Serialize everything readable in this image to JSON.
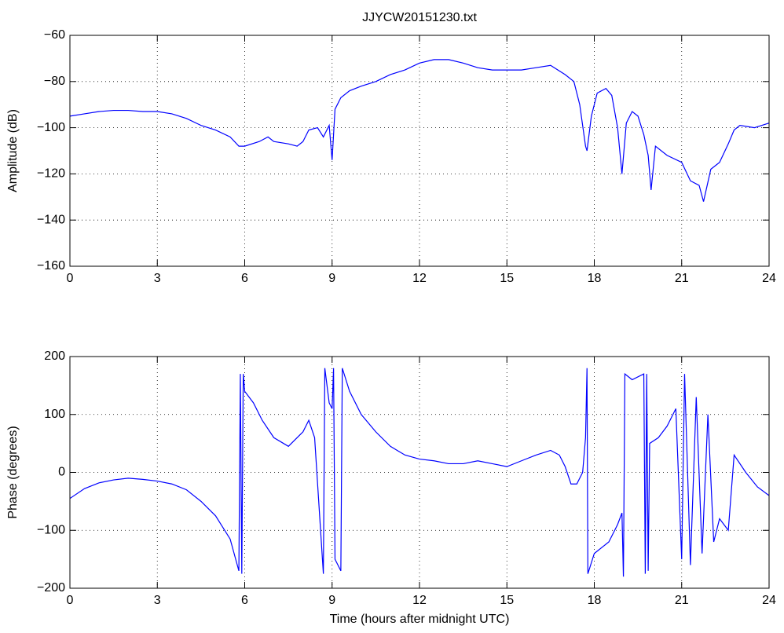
{
  "chart_data": [
    {
      "type": "line",
      "title": "JJYCW20151230.txt",
      "ylabel": "Amplitude (dB)",
      "color": "#0000ff",
      "grid": true,
      "xlim": [
        0,
        24
      ],
      "xticks": [
        0,
        3,
        6,
        9,
        12,
        15,
        18,
        21,
        24
      ],
      "ylim": [
        -160,
        -60
      ],
      "yticks": [
        {
          "value": -160,
          "label": "−160"
        },
        {
          "value": -140,
          "label": "−140"
        },
        {
          "value": -120,
          "label": "−120"
        },
        {
          "value": -100,
          "label": "−100"
        },
        {
          "value": -80,
          "label": "−80"
        },
        {
          "value": -60,
          "label": "−60"
        }
      ],
      "x": [
        0,
        0.5,
        1,
        1.5,
        2,
        2.5,
        3,
        3.5,
        4,
        4.5,
        5,
        5.5,
        5.8,
        6,
        6.5,
        6.8,
        7,
        7.5,
        7.8,
        8,
        8.2,
        8.5,
        8.7,
        8.9,
        9.0,
        9.1,
        9.3,
        9.6,
        10,
        10.5,
        11,
        11.5,
        12,
        12.5,
        13,
        13.5,
        14,
        14.5,
        15,
        15.5,
        16,
        16.5,
        17,
        17.3,
        17.5,
        17.7,
        17.75,
        17.9,
        18.1,
        18.4,
        18.6,
        18.8,
        18.95,
        19.1,
        19.3,
        19.5,
        19.7,
        19.85,
        19.95,
        20.1,
        20.5,
        21,
        21.3,
        21.6,
        21.75,
        22,
        22.3,
        22.6,
        22.8,
        23,
        23.5,
        24
      ],
      "values": [
        -95,
        -94,
        -93,
        -92.5,
        -92.5,
        -93,
        -93,
        -94,
        -96,
        -99,
        -101,
        -104,
        -108,
        -108,
        -106,
        -104,
        -106,
        -107,
        -108,
        -106,
        -101,
        -100,
        -104,
        -99,
        -114,
        -92,
        -87,
        -84,
        -82,
        -80,
        -77,
        -75,
        -72,
        -70.5,
        -70.5,
        -72,
        -74,
        -75,
        -75,
        -75,
        -74,
        -73,
        -77,
        -80,
        -90,
        -108,
        -110,
        -95,
        -85,
        -83,
        -86,
        -100,
        -120,
        -98,
        -93,
        -95,
        -103,
        -112,
        -127,
        -108,
        -112,
        -115,
        -123,
        -125,
        -132,
        -118,
        -115,
        -107,
        -101,
        -99,
        -100,
        -98
      ]
    },
    {
      "type": "line",
      "ylabel": "Phase (degrees)",
      "xlabel": "Time (hours after midnight UTC)",
      "color": "#0000ff",
      "grid": true,
      "xlim": [
        0,
        24
      ],
      "xticks": [
        0,
        3,
        6,
        9,
        12,
        15,
        18,
        21,
        24
      ],
      "ylim": [
        -200,
        200
      ],
      "yticks": [
        {
          "value": -200,
          "label": "−200"
        },
        {
          "value": -100,
          "label": "−100"
        },
        0,
        100,
        200
      ],
      "x": [
        0,
        0.5,
        1,
        1.5,
        2,
        2.5,
        3,
        3.5,
        4,
        4.5,
        5,
        5.5,
        5.8,
        5.85,
        5.9,
        5.95,
        6,
        6.3,
        6.6,
        7,
        7.5,
        8,
        8.2,
        8.4,
        8.7,
        8.75,
        8.9,
        9.0,
        9.05,
        9.1,
        9.3,
        9.35,
        9.6,
        10,
        10.5,
        11,
        11.5,
        12,
        12.5,
        13,
        13.5,
        14,
        14.5,
        15,
        15.5,
        16,
        16.5,
        16.8,
        17,
        17.2,
        17.4,
        17.6,
        17.7,
        17.75,
        17.78,
        18,
        18.5,
        18.8,
        18.95,
        19.0,
        19.05,
        19.3,
        19.7,
        19.75,
        19.8,
        19.85,
        19.9,
        20.2,
        20.5,
        20.8,
        21.0,
        21.1,
        21.3,
        21.5,
        21.7,
        21.9,
        22.1,
        22.3,
        22.6,
        22.8,
        23.2,
        23.6,
        24
      ],
      "values": [
        -45,
        -28,
        -18,
        -13,
        -10,
        -12,
        -15,
        -20,
        -30,
        -50,
        -75,
        -115,
        -170,
        170,
        -175,
        170,
        140,
        120,
        90,
        60,
        45,
        70,
        90,
        60,
        -175,
        180,
        120,
        110,
        180,
        -150,
        -170,
        180,
        140,
        100,
        70,
        45,
        30,
        23,
        20,
        15,
        15,
        20,
        15,
        10,
        20,
        30,
        38,
        30,
        10,
        -20,
        -20,
        0,
        60,
        180,
        -175,
        -140,
        -120,
        -90,
        -70,
        -180,
        170,
        160,
        170,
        -175,
        170,
        -170,
        50,
        60,
        80,
        110,
        -150,
        170,
        -160,
        130,
        -140,
        100,
        -120,
        -80,
        -100,
        30,
        0,
        -25,
        -40
      ]
    }
  ]
}
